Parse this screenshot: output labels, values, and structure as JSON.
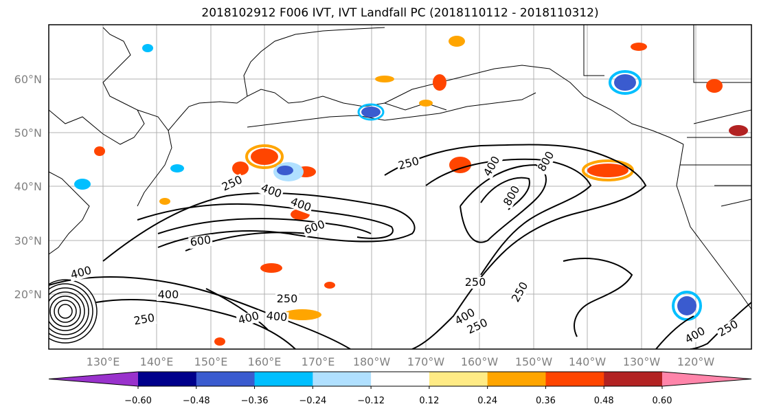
{
  "title": "2018102912 F006 IVT, IVT Landfall PC (2018110112 - 2018110312)",
  "lat_labels": [
    "60°N",
    "50°N",
    "40°N",
    "30°N",
    "20°N"
  ],
  "lon_labels": [
    "130°E",
    "140°E",
    "150°E",
    "160°E",
    "170°E",
    "180°W",
    "170°W",
    "160°W",
    "150°W",
    "140°W",
    "130°W",
    "120°W"
  ],
  "colorbar": {
    "ticks": [
      "−0.60",
      "−0.48",
      "−0.36",
      "−0.24",
      "−0.12",
      "0.12",
      "0.24",
      "0.36",
      "0.48",
      "0.60"
    ],
    "colors": [
      "#9932cc",
      "#00008b",
      "#3a5bcf",
      "#00bfff",
      "#b0e0ff",
      "#ffffff",
      "#ffeb85",
      "#ffa500",
      "#ff4500",
      "#b22222",
      "#ff85aa"
    ]
  },
  "contour_labels": [
    {
      "text": "250"
    },
    {
      "text": "250"
    },
    {
      "text": "400"
    },
    {
      "text": "600"
    },
    {
      "text": "600"
    },
    {
      "text": "250"
    },
    {
      "text": "400"
    },
    {
      "text": "800"
    },
    {
      "text": "400"
    },
    {
      "text": "400"
    },
    {
      "text": "250"
    },
    {
      "text": "400"
    },
    {
      "text": "400"
    },
    {
      "text": "250"
    },
    {
      "text": "250"
    },
    {
      "text": "250"
    },
    {
      "text": "400"
    },
    {
      "text": "250"
    },
    {
      "text": "400"
    },
    {
      "text": "400"
    },
    {
      "text": "800"
    }
  ],
  "chart_data": {
    "type": "map",
    "title": "2018102912 F006 IVT, IVT Landfall PC (2018110112 - 2018110312)",
    "x_ticks": [
      "130°E",
      "140°E",
      "150°E",
      "160°E",
      "170°E",
      "180°W",
      "170°W",
      "160°W",
      "150°W",
      "140°W",
      "130°W",
      "120°W"
    ],
    "y_ticks": [
      "60°N",
      "50°N",
      "40°N",
      "30°N",
      "20°N"
    ],
    "contour_levels": [
      250,
      400,
      600,
      800
    ],
    "colorbar_levels": [
      -0.6,
      -0.48,
      -0.36,
      -0.24,
      -0.12,
      0.12,
      0.24,
      0.36,
      0.48,
      0.6
    ],
    "grid": true
  }
}
